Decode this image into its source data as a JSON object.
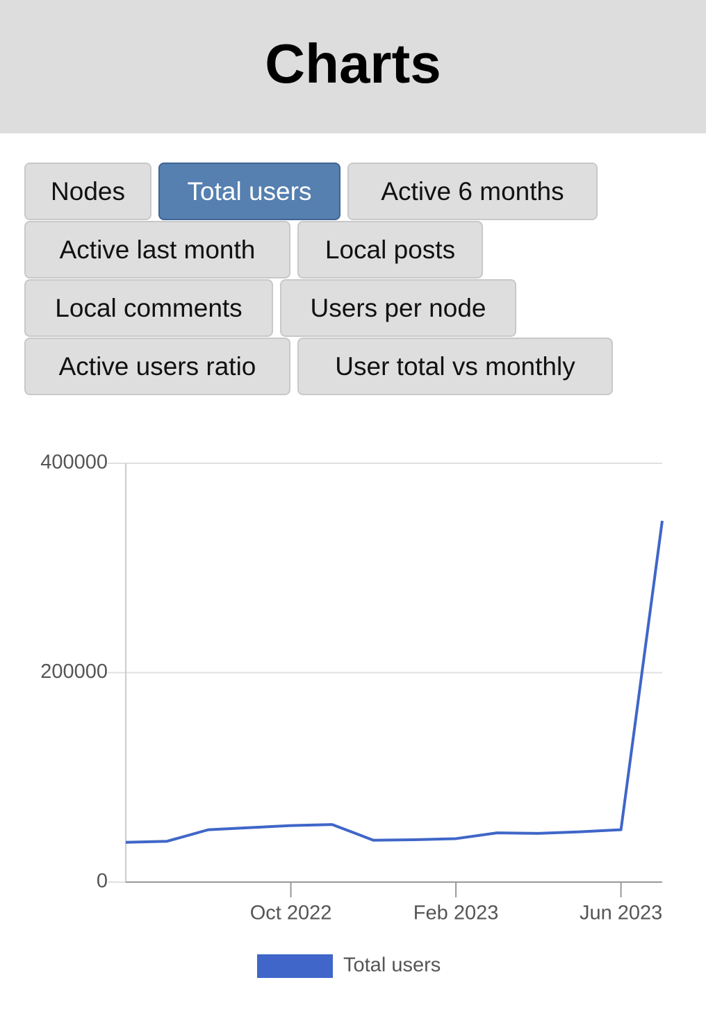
{
  "header": {
    "title": "Charts"
  },
  "tabs": [
    {
      "label": "Nodes",
      "active": false
    },
    {
      "label": "Total users",
      "active": true
    },
    {
      "label": "Active 6 months",
      "active": false
    },
    {
      "label": "Active last month",
      "active": false
    },
    {
      "label": "Local posts",
      "active": false
    },
    {
      "label": "Local comments",
      "active": false
    },
    {
      "label": "Users per node",
      "active": false
    },
    {
      "label": "Active users ratio",
      "active": false
    },
    {
      "label": "User total vs monthly",
      "active": false
    }
  ],
  "chart_data": {
    "type": "line",
    "x": [
      "2022-06",
      "2022-07",
      "2022-08",
      "2022-09",
      "2022-10",
      "2022-11",
      "2022-12",
      "2023-01",
      "2023-02",
      "2023-03",
      "2023-04",
      "2023-05",
      "2023-06",
      "2023-07"
    ],
    "series": [
      {
        "name": "Total users",
        "color": "#3f66c8",
        "values": [
          38000,
          39000,
          50000,
          52000,
          54000,
          55000,
          40000,
          40500,
          41500,
          47000,
          46500,
          48000,
          50000,
          345000
        ]
      }
    ],
    "xlim": [
      "2022-06",
      "2023-07"
    ],
    "xticks": [
      {
        "value": "2022-10",
        "label": "Oct 2022"
      },
      {
        "value": "2023-02",
        "label": "Feb 2023"
      },
      {
        "value": "2023-06",
        "label": "Jun 2023"
      }
    ],
    "ylim": [
      0,
      400000
    ],
    "yticks": [
      0,
      200000,
      400000
    ],
    "grid": true,
    "legend": "bottom"
  }
}
